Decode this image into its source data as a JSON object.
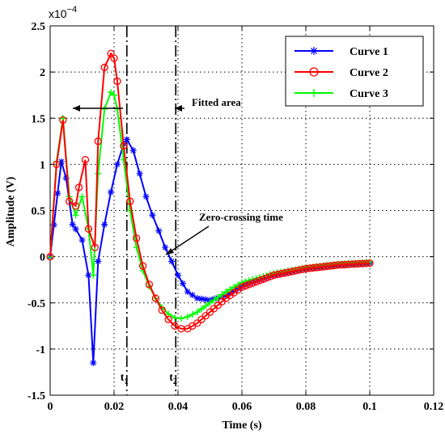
{
  "chart_data": {
    "type": "line",
    "xlabel": "Time (s)",
    "ylabel": "Amplitude (V)",
    "y_exponent_label": "x10",
    "y_exponent_power": "−4",
    "xlim": [
      0,
      0.12
    ],
    "ylim": [
      -1.5,
      2.5
    ],
    "xticks": [
      0,
      0.02,
      0.04,
      0.06,
      0.08,
      0.1,
      0.12
    ],
    "xtick_labels": [
      "0",
      "0.02",
      "0.04",
      "0.06",
      "0.08",
      "0.1",
      "0.12"
    ],
    "yticks": [
      -1.5,
      -1,
      -0.5,
      0,
      0.5,
      1,
      1.5,
      2,
      2.5
    ],
    "ytick_labels": [
      "-1.5",
      "-1",
      "-0.5",
      "0",
      "0.5",
      "1",
      "1.5",
      "2",
      "2.5"
    ],
    "grid": true,
    "legend_position": "top-right",
    "series": [
      {
        "name": "Curve 1",
        "color": "#0000ff",
        "marker": "asterisk",
        "x": [
          0,
          0.0035,
          0.005,
          0.007,
          0.008,
          0.01,
          0.012,
          0.0135,
          0.015,
          0.017,
          0.019,
          0.021,
          0.023,
          0.024,
          0.026,
          0.028,
          0.03,
          0.032,
          0.034,
          0.036,
          0.038,
          0.04,
          0.043,
          0.046,
          0.05,
          0.055,
          0.06,
          0.07,
          0.08,
          0.09,
          0.1
        ],
        "values": [
          0,
          1.03,
          0.85,
          0.35,
          0.3,
          0.18,
          -0.2,
          -1.15,
          -0.05,
          0.35,
          0.7,
          1.0,
          1.22,
          1.27,
          1.15,
          0.9,
          0.65,
          0.45,
          0.28,
          0.1,
          -0.05,
          -0.2,
          -0.38,
          -0.45,
          -0.47,
          -0.42,
          -0.32,
          -0.2,
          -0.13,
          -0.09,
          -0.07
        ]
      },
      {
        "name": "Curve 2",
        "color": "#ff0000",
        "marker": "circle",
        "x": [
          0,
          0.002,
          0.004,
          0.006,
          0.008,
          0.009,
          0.011,
          0.012,
          0.014,
          0.015,
          0.017,
          0.019,
          0.02,
          0.021,
          0.023,
          0.025,
          0.027,
          0.029,
          0.031,
          0.033,
          0.035,
          0.037,
          0.039,
          0.041,
          0.043,
          0.046,
          0.05,
          0.055,
          0.06,
          0.07,
          0.08,
          0.09,
          0.1
        ],
        "values": [
          0,
          1.0,
          1.48,
          0.6,
          0.55,
          0.75,
          1.05,
          0.3,
          0.1,
          1.25,
          2.05,
          2.2,
          2.15,
          1.9,
          1.2,
          0.6,
          0.2,
          -0.1,
          -0.3,
          -0.45,
          -0.58,
          -0.68,
          -0.75,
          -0.78,
          -0.78,
          -0.72,
          -0.6,
          -0.45,
          -0.33,
          -0.2,
          -0.13,
          -0.09,
          -0.07
        ]
      },
      {
        "name": "Curve 3",
        "color": "#00ff00",
        "marker": "plus",
        "x": [
          0,
          0.002,
          0.004,
          0.006,
          0.008,
          0.01,
          0.012,
          0.0135,
          0.015,
          0.017,
          0.019,
          0.02,
          0.021,
          0.023,
          0.025,
          0.027,
          0.029,
          0.031,
          0.033,
          0.035,
          0.037,
          0.039,
          0.041,
          0.043,
          0.046,
          0.05,
          0.055,
          0.06,
          0.07,
          0.08,
          0.09,
          0.1
        ],
        "values": [
          0,
          1.03,
          1.5,
          0.65,
          0.45,
          0.65,
          0.3,
          -0.2,
          0.9,
          1.6,
          1.78,
          1.75,
          1.6,
          1.05,
          0.5,
          0.1,
          -0.15,
          -0.32,
          -0.45,
          -0.55,
          -0.62,
          -0.66,
          -0.67,
          -0.65,
          -0.6,
          -0.5,
          -0.38,
          -0.28,
          -0.18,
          -0.12,
          -0.08,
          -0.06
        ]
      }
    ],
    "vlines": [
      {
        "x": 0.024,
        "label": "t",
        "sub": "1"
      },
      {
        "x": 0.0393,
        "label": "t",
        "sub": "2"
      }
    ],
    "annotations": {
      "fitted_area": "Fitted area",
      "zero_crossing": "Zero-crossing time"
    }
  }
}
